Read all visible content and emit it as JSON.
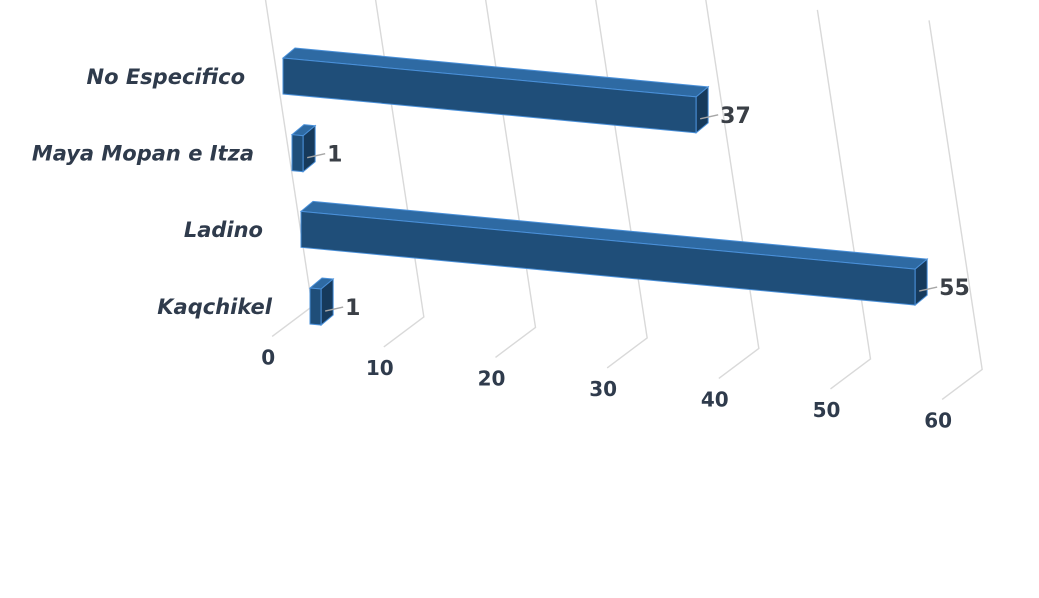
{
  "chart_data": {
    "type": "bar",
    "orientation": "horizontal",
    "style": "3d",
    "categories": [
      "Kaqchikel",
      "Ladino",
      "Maya Mopan e Itza",
      "No Especifico"
    ],
    "values": [
      1,
      55,
      1,
      37
    ],
    "x_ticks": [
      "0",
      "10",
      "20",
      "30",
      "40",
      "50",
      "60"
    ],
    "xlim": [
      0,
      60
    ],
    "title": "",
    "xlabel": "",
    "ylabel": "",
    "grid": true,
    "legend": "none",
    "colors": {
      "bar_front": "#1f4e79",
      "bar_top": "#2e6aa3",
      "bar_side": "#163a5c",
      "bar_edge": "#4a90d9",
      "text": "#2f3b4c",
      "grid": "#d9d9d9"
    }
  }
}
